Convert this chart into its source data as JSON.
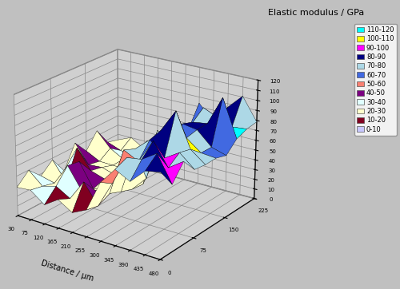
{
  "title": "Elastic modulus / GPa",
  "xlabel": "Distance / μm",
  "legend_labels": [
    "110-120",
    "100-110",
    "90-100",
    "80-90",
    "70-80",
    "60-70",
    "50-60",
    "40-50",
    "30-40",
    "20-30",
    "10-20",
    "0-10"
  ],
  "legend_colors": [
    "#00FFFF",
    "#FFFF00",
    "#FF00FF",
    "#000080",
    "#ADD8E6",
    "#4169E1",
    "#FA8072",
    "#7B0080",
    "#E0FFFF",
    "#FFFFCC",
    "#800020",
    "#C8C8FF"
  ],
  "background_color": "#C0C0C0",
  "wall_color": "#D0D0D0",
  "figsize": [
    5.0,
    3.62
  ],
  "dpi": 100,
  "x_ticks": [
    30,
    75,
    120,
    165,
    210,
    255,
    300,
    345,
    390,
    435,
    480
  ],
  "y_ticks": [
    0,
    75,
    150,
    225
  ],
  "z_ticks": [
    0,
    10,
    20,
    30,
    40,
    50,
    60,
    70,
    80,
    90,
    100,
    110,
    120
  ],
  "elev": 22,
  "azim": -55
}
